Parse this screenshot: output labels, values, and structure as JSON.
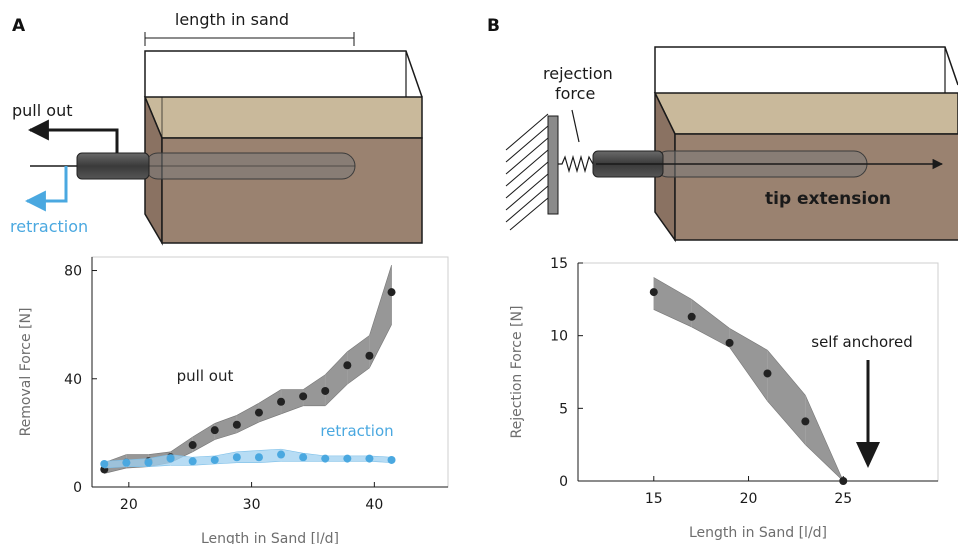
{
  "panels": {
    "a": {
      "label": "A",
      "annotations": {
        "length_in_sand": "length in sand",
        "pull_out": "pull out",
        "retraction": "retraction"
      }
    },
    "b": {
      "label": "B",
      "annotations": {
        "rejection_force": "rejection\nforce",
        "tip_extension": "tip extension"
      }
    }
  },
  "colors": {
    "pull_out": "#222222",
    "pull_out_band": "#8c8c8c",
    "retraction": "#4aa8e0",
    "retraction_band": "#9fd0f0",
    "sand_top": "#c7b79a",
    "sand_side": "#9a8270"
  },
  "chart_data": [
    {
      "panel": "A",
      "type": "scatter",
      "xlabel": "Length in Sand [l/d]",
      "ylabel": "Removal Force [N]",
      "xlim": [
        17,
        46
      ],
      "ylim": [
        0,
        85
      ],
      "xticks": [
        20,
        30,
        40
      ],
      "yticks": [
        0,
        40,
        80
      ],
      "grid": false,
      "series": [
        {
          "name": "pull out",
          "color": "#222222",
          "x": [
            18,
            19.8,
            21.6,
            23.4,
            25.2,
            27,
            28.8,
            30.6,
            32.4,
            34.2,
            36,
            37.8,
            39.6,
            41.4
          ],
          "y": [
            6.5,
            9,
            9.5,
            11,
            15.5,
            21,
            23,
            27.5,
            31.5,
            33.5,
            35.5,
            45,
            48.5,
            72
          ],
          "band_low": [
            5,
            7,
            7.5,
            9,
            13,
            17.5,
            20,
            24,
            27,
            30,
            30,
            38,
            44,
            60
          ],
          "band_high": [
            9,
            12,
            12,
            13,
            18.5,
            23.5,
            26.5,
            31,
            36,
            36,
            41.5,
            50,
            56,
            82
          ]
        },
        {
          "name": "retraction",
          "color": "#4aa8e0",
          "x": [
            18,
            19.8,
            21.6,
            23.4,
            25.2,
            27,
            28.8,
            30.6,
            32.4,
            34.2,
            36,
            37.8,
            39.6,
            41.4
          ],
          "y": [
            8.5,
            9,
            9,
            10.5,
            9.5,
            10,
            11,
            11,
            12,
            11,
            10.5,
            10.5,
            10.5,
            10
          ],
          "band_low": [
            7,
            7.5,
            7.5,
            8,
            8,
            8.5,
            9,
            9,
            9.5,
            9.5,
            9.5,
            9.5,
            9.5,
            9
          ],
          "band_high": [
            9.5,
            10,
            10.5,
            12,
            11,
            11.5,
            13,
            13.5,
            14,
            12.5,
            11.5,
            11.5,
            11.5,
            11
          ]
        }
      ]
    },
    {
      "panel": "B",
      "type": "scatter",
      "xlabel": "Length in Sand [l/d]",
      "ylabel": "Rejection Force [N]",
      "xlim": [
        11,
        30
      ],
      "ylim": [
        0,
        15
      ],
      "xticks": [
        15,
        20,
        25
      ],
      "yticks": [
        0,
        5,
        10,
        15
      ],
      "grid": false,
      "annotation": "self anchored",
      "series": [
        {
          "name": "",
          "color": "#222222",
          "x": [
            15,
            17,
            19,
            21,
            23,
            25
          ],
          "y": [
            13,
            11.3,
            9.5,
            7.4,
            4.1,
            0
          ],
          "band_low": [
            11.8,
            10.6,
            9.2,
            5.5,
            2.5,
            0
          ],
          "band_high": [
            14,
            12.5,
            10.5,
            9,
            5.9,
            0
          ]
        }
      ]
    }
  ]
}
